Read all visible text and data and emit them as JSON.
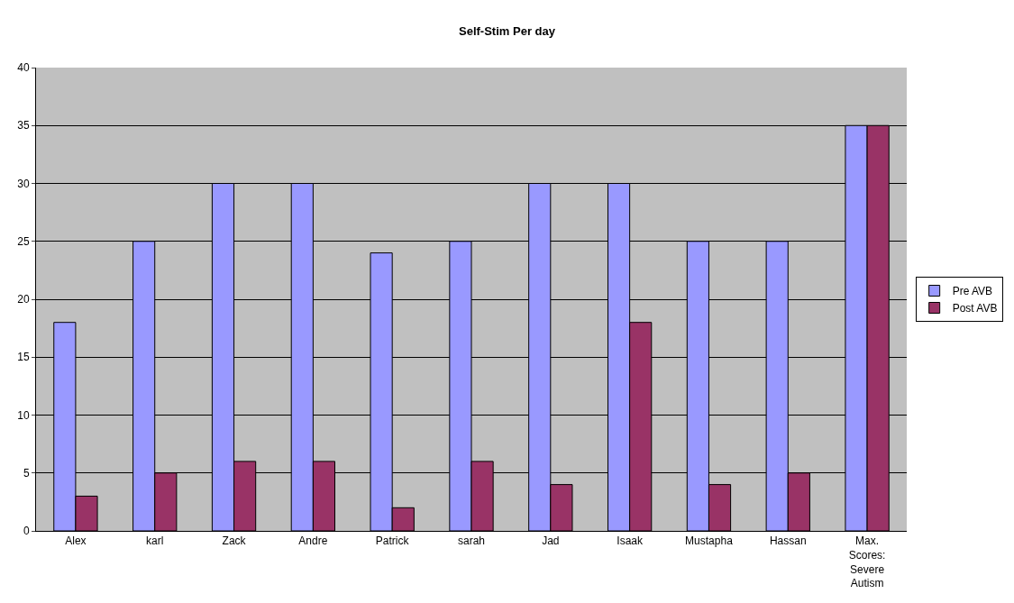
{
  "chart_data": {
    "type": "bar",
    "title": "Self-Stim Per day",
    "categories": [
      "Alex",
      "karl",
      "Zack",
      "Andre",
      "Patrick",
      "sarah",
      "Jad",
      "Isaak",
      "Mustapha",
      "Hassan",
      "Max. Scores: Severe Autism"
    ],
    "series": [
      {
        "name": "Pre AVB",
        "color": "#9999ff",
        "values": [
          18,
          25,
          30,
          30,
          24,
          25,
          30,
          30,
          25,
          25,
          35
        ]
      },
      {
        "name": "Post AVB",
        "color": "#993366",
        "values": [
          3,
          5,
          6,
          6,
          2,
          6,
          4,
          18,
          4,
          5,
          35
        ]
      }
    ],
    "ylim": [
      0,
      40
    ],
    "yticks": [
      0,
      5,
      10,
      15,
      20,
      25,
      30,
      35,
      40
    ],
    "grid": "y",
    "legend": "right"
  }
}
